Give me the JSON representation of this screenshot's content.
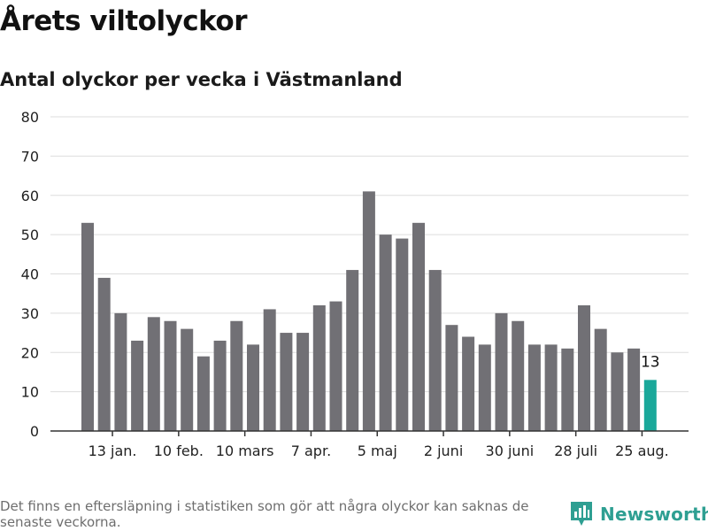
{
  "header": {
    "title": "Årets viltolyckor",
    "subtitle": "Antal olyckor per vecka i Västmanland"
  },
  "footer": {
    "note": "Det finns en eftersläpning i statistiken som gör att några olyckor kan saknas de senaste veckorna.",
    "brand": "Newsworthy"
  },
  "colors": {
    "bar": "#717075",
    "highlight": "#1aa89a",
    "grid": "#dddddd",
    "axis": "#333333",
    "brand": "#2e9f92"
  },
  "chart_data": {
    "type": "bar",
    "title": "Årets viltolyckor",
    "subtitle": "Antal olyckor per vecka i Västmanland",
    "values": [
      53,
      39,
      30,
      23,
      29,
      28,
      26,
      19,
      23,
      28,
      22,
      31,
      25,
      25,
      32,
      33,
      41,
      61,
      50,
      49,
      53,
      41,
      27,
      24,
      22,
      30,
      28,
      22,
      22,
      21,
      32,
      26,
      20,
      21,
      13
    ],
    "x_tick_labels": [
      {
        "index": 1,
        "label": "13 jan."
      },
      {
        "index": 5,
        "label": "10 feb."
      },
      {
        "index": 9,
        "label": "10 mars"
      },
      {
        "index": 13,
        "label": "7 apr."
      },
      {
        "index": 17,
        "label": "5 maj"
      },
      {
        "index": 21,
        "label": "2 juni"
      },
      {
        "index": 25,
        "label": "30 juni"
      },
      {
        "index": 29,
        "label": "28 juli"
      },
      {
        "index": 33,
        "label": "25 aug."
      }
    ],
    "y_ticks": [
      0,
      10,
      20,
      30,
      40,
      50,
      60,
      70,
      80
    ],
    "ylim": [
      0,
      80
    ],
    "highlight_index": 34,
    "highlight_label": "13",
    "grid": true,
    "legend": "none"
  }
}
